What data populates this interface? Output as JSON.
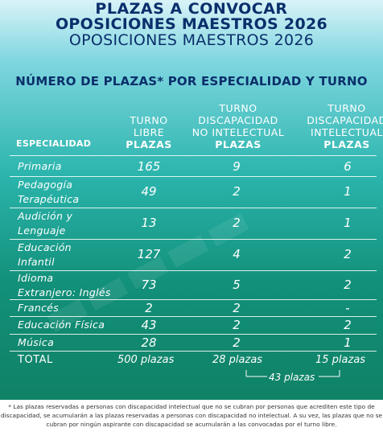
{
  "header": {
    "line1": "PLAZAS A CONVOCAR",
    "line2": "OPOSICIONES MAESTROS 2026",
    "line3": "OPOSICIONES MAESTROS 2026"
  },
  "subtitle": "NÚMERO DE PLAZAS* POR ESPECIALIDAD Y TURNO",
  "columns": {
    "especialidad": "ESPECIALIDAD",
    "libre": {
      "l1": "TURNO",
      "l2": "LIBRE",
      "plazas": "PLAZAS"
    },
    "no_intelectual": {
      "l1": "TURNO",
      "l2": "DISCAPACIDAD",
      "l3": "NO INTELECTUAL",
      "plazas": "PLAZAS"
    },
    "intelectual": {
      "l1": "TURNO",
      "l2": "DISCAPACIDAD",
      "l3": "INTELECTUAL",
      "plazas": "PLAZAS"
    }
  },
  "rows": [
    {
      "l1": "Primaria",
      "l2": "",
      "libre": "165",
      "no_int": "9",
      "int": "6"
    },
    {
      "l1": "Pedagogía",
      "l2": "Terapéutica",
      "libre": "49",
      "no_int": "2",
      "int": "1"
    },
    {
      "l1": "Audición y",
      "l2": "Lenguaje",
      "libre": "13",
      "no_int": "2",
      "int": "1"
    },
    {
      "l1": "Educación",
      "l2": "Infantil",
      "libre": "127",
      "no_int": "4",
      "int": "2"
    },
    {
      "l1": "Idioma",
      "l2": "Extranjero: Inglés",
      "libre": "73",
      "no_int": "5",
      "int": "2"
    },
    {
      "l1": "Francés",
      "l2": "",
      "libre": "2",
      "no_int": "2",
      "int": "-"
    },
    {
      "l1": "Educación Física",
      "l2": "",
      "libre": "43",
      "no_int": "2",
      "int": "2"
    },
    {
      "l1": "Música",
      "l2": "",
      "libre": "28",
      "no_int": "2",
      "int": "1"
    }
  ],
  "total": {
    "label": "TOTAL",
    "libre": "500 plazas",
    "no_int": "28 plazas",
    "int": "15 plazas",
    "combined": "43 plazas"
  },
  "footnote": "* Las plazas reservadas a personas con discapacidad intelectual que no se cubran por personas que acrediten este tipo de discapacidad, se acumularán a las plazas reservadas a personas con discapacidad no intelectual. A su vez, las plazas que no se cubran por ningún aspirante con discapacidad se acumularán a las convocadas por el turno libre.",
  "colors": {
    "title": "#0a2f6b",
    "text": "#ffffff"
  }
}
